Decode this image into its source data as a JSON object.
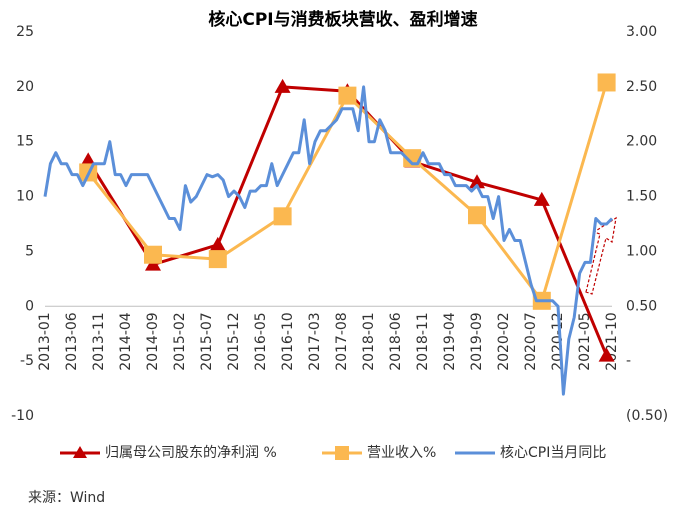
{
  "chart_data": {
    "type": "line",
    "title": "核心CPI与消费板块营收、盈利增速",
    "source": "来源：Wind",
    "categories": [
      "2013-01",
      null,
      null,
      null,
      null,
      "2013-06",
      null,
      null,
      null,
      null,
      "2013-11",
      null,
      null,
      null,
      null,
      "2014-04",
      null,
      null,
      null,
      null,
      "2014-09",
      null,
      null,
      null,
      null,
      "2015-02",
      null,
      null,
      null,
      null,
      "2015-07",
      null,
      null,
      null,
      null,
      "2015-12",
      null,
      null,
      null,
      null,
      "2016-05",
      null,
      null,
      null,
      null,
      "2016-10",
      null,
      null,
      null,
      null,
      "2017-03",
      null,
      null,
      null,
      null,
      "2017-08",
      null,
      null,
      null,
      null,
      "2018-01",
      null,
      null,
      null,
      null,
      "2018-06",
      null,
      null,
      null,
      null,
      "2018-11",
      null,
      null,
      null,
      null,
      "2019-04",
      null,
      null,
      null,
      null,
      "2019-09",
      null,
      null,
      null,
      null,
      "2020-02",
      null,
      null,
      null,
      null,
      "2020-07",
      null,
      null,
      null,
      null,
      "2020-12",
      null,
      null,
      null,
      null,
      "2021-05",
      null,
      null,
      null,
      null,
      "2021-10"
    ],
    "ylim": [
      -10,
      25
    ],
    "yticks": [
      -10,
      -5,
      0,
      5,
      10,
      15,
      20,
      25
    ],
    "y2lim": [
      -0.5,
      3
    ],
    "y2ticks": [
      {
        "value": -0.5,
        "label": "(0.50)"
      },
      {
        "value": 0,
        "label": "-"
      },
      {
        "value": 0.5,
        "label": "0.50"
      },
      {
        "value": 1,
        "label": "1.00"
      },
      {
        "value": 1.5,
        "label": "1.50"
      },
      {
        "value": 2,
        "label": "2.00"
      },
      {
        "value": 2.5,
        "label": "2.50"
      },
      {
        "value": 3,
        "label": "3.00"
      }
    ],
    "grid": false,
    "legend": "bottom",
    "series": [
      {
        "name": "归属母公司股东的净利润 %",
        "color": "#c00000",
        "marker": "triangle",
        "x": [
          "2013-09",
          "2014-09",
          "2015-09",
          "2016-09",
          "2017-09",
          "2018-09",
          "2019-09",
          "2020-09",
          "2021-09"
        ],
        "values": [
          13.3,
          3.8,
          5.6,
          20.0,
          19.6,
          13.2,
          11.3,
          9.7,
          -4.5
        ]
      },
      {
        "name": "营业收入%",
        "color": "#fbb850",
        "marker": "square",
        "x": [
          "2013-09",
          "2014-09",
          "2015-09",
          "2016-09",
          "2017-09",
          "2018-09",
          "2019-09",
          "2020-09",
          "2021-09"
        ],
        "values": [
          12.2,
          4.7,
          4.3,
          8.2,
          19.2,
          13.5,
          8.3,
          0.5,
          20.4
        ]
      },
      {
        "name": "核心CPI当月同比",
        "color": "#5b8fd9",
        "axis": "y2",
        "values": [
          1.5,
          1.8,
          1.9,
          1.8,
          1.8,
          1.7,
          1.7,
          1.6,
          1.7,
          1.8,
          1.8,
          1.8,
          2.0,
          1.7,
          1.7,
          1.6,
          1.7,
          1.7,
          1.7,
          1.7,
          1.6,
          1.5,
          1.4,
          1.3,
          1.3,
          1.2,
          1.6,
          1.45,
          1.5,
          1.6,
          1.7,
          1.68,
          1.7,
          1.65,
          1.5,
          1.55,
          1.5,
          1.4,
          1.55,
          1.55,
          1.6,
          1.6,
          1.8,
          1.6,
          1.7,
          1.8,
          1.9,
          1.9,
          2.2,
          1.8,
          2.0,
          2.1,
          2.1,
          2.15,
          2.2,
          2.3,
          2.3,
          2.3,
          2.1,
          2.5,
          2.0,
          2.0,
          2.2,
          2.1,
          1.9,
          1.9,
          1.9,
          1.85,
          1.8,
          1.8,
          1.9,
          1.8,
          1.8,
          1.8,
          1.7,
          1.7,
          1.6,
          1.6,
          1.6,
          1.55,
          1.6,
          1.5,
          1.5,
          1.3,
          1.5,
          1.1,
          1.2,
          1.1,
          1.1,
          0.9,
          0.7,
          0.55,
          0.55,
          0.55,
          0.55,
          0.5,
          -0.3,
          0.2,
          0.4,
          0.8,
          0.9,
          0.9,
          1.3,
          1.25,
          1.25,
          1.3
        ]
      }
    ]
  }
}
